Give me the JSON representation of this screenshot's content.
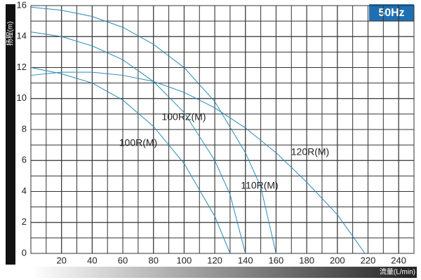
{
  "chart_data": {
    "type": "line",
    "badge": "50Hz",
    "y_label": "扬程(m)",
    "x_label": "流量(L/min)",
    "xlim": [
      0,
      250
    ],
    "ylim": [
      0,
      16
    ],
    "xticks": [
      20,
      40,
      60,
      80,
      100,
      120,
      140,
      160,
      180,
      200,
      220,
      240
    ],
    "yticks": [
      0,
      2,
      4,
      6,
      8,
      10,
      12,
      14,
      16
    ],
    "grid": true,
    "series": [
      {
        "name": "100R(M)",
        "color": "#2a8ab8",
        "x": [
          0,
          20,
          40,
          60,
          80,
          100,
          120,
          130
        ],
        "values": [
          12.0,
          11.6,
          11.0,
          9.9,
          8.2,
          5.8,
          2.4,
          0
        ]
      },
      {
        "name": "100RZ(M)",
        "color": "#2a8ab8",
        "x": [
          0,
          20,
          40,
          60,
          80,
          100,
          120,
          130,
          140
        ],
        "values": [
          14.3,
          14.0,
          13.4,
          12.5,
          11.1,
          9.1,
          6.0,
          3.8,
          0
        ]
      },
      {
        "name": "110R(M)",
        "color": "#2a8ab8",
        "x": [
          0,
          20,
          40,
          60,
          80,
          100,
          120,
          140,
          150,
          160
        ],
        "values": [
          15.9,
          15.7,
          15.3,
          14.6,
          13.5,
          12.0,
          9.8,
          6.5,
          4.3,
          0
        ]
      },
      {
        "name": "120R(M)",
        "color": "#2a8ab8",
        "x": [
          0,
          20,
          40,
          60,
          80,
          100,
          120,
          140,
          160,
          180,
          200,
          218
        ],
        "values": [
          11.5,
          11.7,
          11.7,
          11.5,
          11.1,
          10.4,
          9.4,
          8.1,
          6.5,
          4.6,
          2.5,
          0
        ]
      }
    ]
  }
}
